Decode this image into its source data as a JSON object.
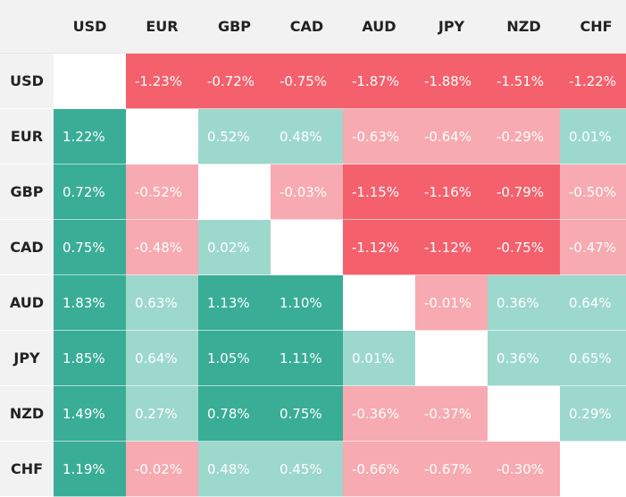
{
  "chart_data": {
    "type": "heatmap",
    "title": "",
    "columns": [
      "USD",
      "EUR",
      "GBP",
      "CAD",
      "AUD",
      "JPY",
      "NZD",
      "CHF"
    ],
    "rows": [
      "USD",
      "EUR",
      "GBP",
      "CAD",
      "AUD",
      "JPY",
      "NZD",
      "CHF"
    ],
    "cells": [
      [
        "",
        "-1.23%",
        "-0.72%",
        "-0.75%",
        "-1.87%",
        "-1.88%",
        "-1.51%",
        "-1.22%"
      ],
      [
        "1.22%",
        "",
        "0.52%",
        "0.48%",
        "-0.63%",
        "-0.64%",
        "-0.29%",
        "0.01%"
      ],
      [
        "0.72%",
        "-0.52%",
        "",
        "-0.03%",
        "-1.15%",
        "-1.16%",
        "-0.79%",
        "-0.50%"
      ],
      [
        "0.75%",
        "-0.48%",
        "0.02%",
        "",
        "-1.12%",
        "-1.12%",
        "-0.75%",
        "-0.47%"
      ],
      [
        "1.83%",
        "0.63%",
        "1.13%",
        "1.10%",
        "",
        "-0.01%",
        "0.36%",
        "0.64%"
      ],
      [
        "1.85%",
        "0.64%",
        "1.05%",
        "1.11%",
        "0.01%",
        "",
        "0.36%",
        "0.65%"
      ],
      [
        "1.49%",
        "0.27%",
        "0.78%",
        "0.75%",
        "-0.36%",
        "-0.37%",
        "",
        "0.29%"
      ],
      [
        "1.19%",
        "-0.02%",
        "0.48%",
        "0.45%",
        "-0.66%",
        "-0.67%",
        "-0.30%",
        ""
      ]
    ],
    "colors": {
      "strong_positive": "#3aad96",
      "light_positive": "#9dd8cc",
      "light_negative": "#f7aab1",
      "strong_negative": "#f4606c",
      "empty": "#ffffff"
    }
  }
}
